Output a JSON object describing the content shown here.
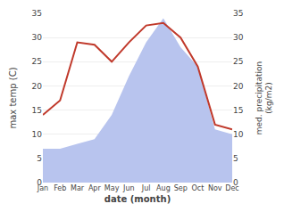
{
  "chart_data": {
    "type": "line",
    "categories": [
      "Jan",
      "Feb",
      "Mar",
      "Apr",
      "May",
      "Jun",
      "Jul",
      "Aug",
      "Sep",
      "Oct",
      "Nov",
      "Dec"
    ],
    "xlabel": "date (month)",
    "ylabel": "max temp (C)",
    "y2label": "med. precipitation\n(kg/m2)",
    "series": [
      {
        "type": "area",
        "axis": "y2",
        "color": "#b8c4ee",
        "values": [
          7,
          7,
          8,
          9,
          14,
          22,
          29,
          34,
          28,
          24,
          11,
          10
        ]
      },
      {
        "type": "line",
        "color": "#c0392b",
        "values": [
          14,
          17,
          29,
          28.5,
          25,
          29,
          32.5,
          33,
          30,
          24,
          12,
          11
        ]
      }
    ],
    "ylim": [
      0,
      35
    ],
    "yticks": [
      0,
      5,
      10,
      15,
      20,
      25,
      30,
      35
    ],
    "y2lim": [
      0,
      35
    ],
    "y2ticks": [
      0,
      5,
      10,
      15,
      20,
      25,
      30,
      35
    ],
    "grid": true
  }
}
